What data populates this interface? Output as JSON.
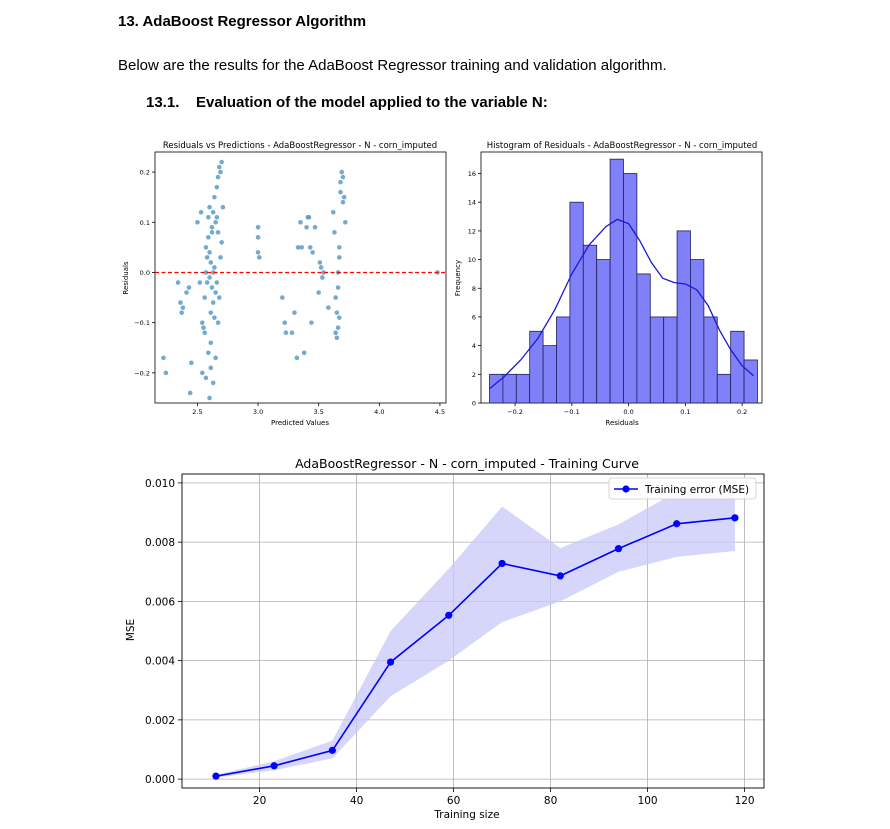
{
  "doc": {
    "heading": "13. AdaBoost Regressor Algorithm",
    "paragraph": "Below are the results for the AdaBoost Regressor training and validation algorithm.",
    "subheading": "13.1.    Evaluation of the model applied to the variable N:"
  },
  "chart_data": [
    {
      "type": "scatter",
      "title": "Residuals vs Predictions - AdaBoostRegressor - N - corn_imputed",
      "xlabel": "Predicted Values",
      "ylabel": "Residuals",
      "xlim": [
        2.15,
        4.55
      ],
      "ylim": [
        -0.26,
        0.24
      ],
      "xticks": [
        2.5,
        3.0,
        3.5,
        4.0,
        4.5
      ],
      "xtick_labels": [
        "2.5",
        "3.0",
        "3.5",
        "4.0",
        "4.5"
      ],
      "yticks": [
        -0.2,
        -0.1,
        0.0,
        0.1,
        0.2
      ],
      "ytick_labels": [
        "−0.2",
        "−0.1",
        "0.0",
        "0.1",
        "0.2"
      ],
      "reference_line": 0.0,
      "color": "#5b9bc8",
      "ref_color": "#ff0000",
      "points": [
        [
          2.22,
          -0.17
        ],
        [
          2.24,
          -0.2
        ],
        [
          2.34,
          -0.02
        ],
        [
          2.36,
          -0.06
        ],
        [
          2.37,
          -0.08
        ],
        [
          2.38,
          -0.07
        ],
        [
          2.41,
          -0.04
        ],
        [
          2.43,
          -0.03
        ],
        [
          2.44,
          -0.24
        ],
        [
          2.45,
          -0.18
        ],
        [
          2.5,
          0.1
        ],
        [
          2.52,
          -0.02
        ],
        [
          2.53,
          0.12
        ],
        [
          2.54,
          -0.1
        ],
        [
          2.55,
          -0.11
        ],
        [
          2.56,
          -0.12
        ],
        [
          2.56,
          -0.05
        ],
        [
          2.57,
          0.05
        ],
        [
          2.57,
          0.0
        ],
        [
          2.58,
          0.03
        ],
        [
          2.58,
          -0.02
        ],
        [
          2.59,
          0.11
        ],
        [
          2.59,
          0.07
        ],
        [
          2.6,
          0.13
        ],
        [
          2.6,
          0.04
        ],
        [
          2.6,
          -0.01
        ],
        [
          2.61,
          0.02
        ],
        [
          2.61,
          -0.08
        ],
        [
          2.61,
          -0.14
        ],
        [
          2.62,
          0.09
        ],
        [
          2.62,
          0.08
        ],
        [
          2.62,
          -0.03
        ],
        [
          2.63,
          0.12
        ],
        [
          2.63,
          0.0
        ],
        [
          2.63,
          -0.06
        ],
        [
          2.64,
          0.15
        ],
        [
          2.64,
          0.01
        ],
        [
          2.64,
          -0.09
        ],
        [
          2.65,
          0.1
        ],
        [
          2.65,
          -0.04
        ],
        [
          2.65,
          -0.17
        ],
        [
          2.66,
          0.17
        ],
        [
          2.66,
          0.11
        ],
        [
          2.66,
          -0.02
        ],
        [
          2.67,
          0.19
        ],
        [
          2.67,
          0.08
        ],
        [
          2.67,
          -0.1
        ],
        [
          2.68,
          0.21
        ],
        [
          2.68,
          -0.05
        ],
        [
          2.69,
          0.2
        ],
        [
          2.69,
          0.03
        ],
        [
          2.7,
          0.22
        ],
        [
          2.7,
          0.06
        ],
        [
          2.71,
          0.13
        ],
        [
          2.54,
          -0.2
        ],
        [
          2.57,
          -0.21
        ],
        [
          2.59,
          -0.16
        ],
        [
          2.6,
          -0.25
        ],
        [
          2.61,
          -0.19
        ],
        [
          2.63,
          -0.22
        ],
        [
          3.0,
          0.09
        ],
        [
          3.0,
          0.07
        ],
        [
          3.0,
          0.04
        ],
        [
          3.01,
          0.03
        ],
        [
          3.2,
          -0.05
        ],
        [
          3.22,
          -0.1
        ],
        [
          3.23,
          -0.12
        ],
        [
          3.28,
          -0.12
        ],
        [
          3.3,
          -0.08
        ],
        [
          3.32,
          -0.17
        ],
        [
          3.33,
          0.05
        ],
        [
          3.35,
          0.1
        ],
        [
          3.36,
          0.05
        ],
        [
          3.38,
          -0.16
        ],
        [
          3.4,
          0.09
        ],
        [
          3.41,
          0.11
        ],
        [
          3.42,
          0.11
        ],
        [
          3.43,
          0.05
        ],
        [
          3.44,
          -0.1
        ],
        [
          3.45,
          0.04
        ],
        [
          3.47,
          0.09
        ],
        [
          3.5,
          -0.04
        ],
        [
          3.51,
          0.02
        ],
        [
          3.52,
          0.01
        ],
        [
          3.53,
          -0.01
        ],
        [
          3.54,
          0.0
        ],
        [
          3.58,
          -0.07
        ],
        [
          3.62,
          0.12
        ],
        [
          3.63,
          0.08
        ],
        [
          3.64,
          -0.05
        ],
        [
          3.64,
          -0.12
        ],
        [
          3.65,
          -0.08
        ],
        [
          3.65,
          -0.13
        ],
        [
          3.66,
          -0.11
        ],
        [
          3.66,
          -0.03
        ],
        [
          3.67,
          0.03
        ],
        [
          3.67,
          0.05
        ],
        [
          3.68,
          0.16
        ],
        [
          3.68,
          0.18
        ],
        [
          3.69,
          0.2
        ],
        [
          3.7,
          0.14
        ],
        [
          3.7,
          0.19
        ],
        [
          3.71,
          0.15
        ],
        [
          3.72,
          0.1
        ],
        [
          3.66,
          0.0
        ],
        [
          3.67,
          -0.09
        ],
        [
          4.48,
          0.0
        ]
      ]
    },
    {
      "type": "bar",
      "title": "Histogram of Residuals - AdaBoostRegressor - N - corn_imputed",
      "xlabel": "Residuals",
      "ylabel": "Frequency",
      "bin_start": -0.245,
      "bin_width": 0.0236,
      "counts": [
        2,
        2,
        2,
        5,
        4,
        6,
        14,
        11,
        10,
        17,
        16,
        9,
        6,
        6,
        12,
        10,
        6,
        2,
        5,
        3
      ],
      "xlim": [
        -0.26,
        0.235
      ],
      "ylim": [
        0,
        17.5
      ],
      "xticks": [
        -0.2,
        -0.1,
        0.0,
        0.1,
        0.2
      ],
      "xtick_labels": [
        "−0.2",
        "−0.1",
        "0.0",
        "0.1",
        "0.2"
      ],
      "yticks": [
        0,
        2,
        4,
        6,
        8,
        10,
        12,
        14,
        16
      ],
      "ytick_labels": [
        "0",
        "2",
        "4",
        "6",
        "8",
        "10",
        "12",
        "14",
        "16"
      ],
      "bar_color": "#8080f8",
      "line_color": "#1a1ad4",
      "kde": [
        [
          -0.245,
          1.0
        ],
        [
          -0.22,
          1.8
        ],
        [
          -0.19,
          3.0
        ],
        [
          -0.16,
          4.5
        ],
        [
          -0.13,
          6.5
        ],
        [
          -0.1,
          9.0
        ],
        [
          -0.07,
          11.0
        ],
        [
          -0.04,
          12.3
        ],
        [
          -0.02,
          12.8
        ],
        [
          0.0,
          12.5
        ],
        [
          0.02,
          11.3
        ],
        [
          0.04,
          9.8
        ],
        [
          0.06,
          8.7
        ],
        [
          0.08,
          8.4
        ],
        [
          0.1,
          8.3
        ],
        [
          0.12,
          7.9
        ],
        [
          0.14,
          6.8
        ],
        [
          0.16,
          5.1
        ],
        [
          0.18,
          3.7
        ],
        [
          0.2,
          2.6
        ],
        [
          0.22,
          1.9
        ]
      ]
    },
    {
      "type": "line",
      "title": "AdaBoostRegressor - N - corn_imputed - Training Curve",
      "xlabel": "Training size",
      "ylabel": "MSE",
      "xlim": [
        4,
        124
      ],
      "ylim": [
        -0.0003,
        0.0103
      ],
      "xticks": [
        20,
        40,
        60,
        80,
        100,
        120
      ],
      "xtick_labels": [
        "20",
        "40",
        "60",
        "80",
        "100",
        "120"
      ],
      "yticks": [
        0.0,
        0.002,
        0.004,
        0.006,
        0.008,
        0.01
      ],
      "ytick_labels": [
        "0.000",
        "0.002",
        "0.004",
        "0.006",
        "0.008",
        "0.010"
      ],
      "grid": true,
      "legend_position": "top-right",
      "color": "#0000ff",
      "band_color": "#c8c8fa",
      "series": [
        {
          "name": "Training error (MSE)",
          "x": [
            11,
            23,
            35,
            47,
            59,
            70,
            82,
            94,
            106,
            118
          ],
          "y": [
            0.0001,
            0.00045,
            0.00097,
            0.00395,
            0.00553,
            0.00728,
            0.00686,
            0.00778,
            0.00862,
            0.00882
          ],
          "band_upper": [
            0.00015,
            0.0006,
            0.0013,
            0.005,
            0.0071,
            0.0092,
            0.0078,
            0.0086,
            0.0097,
            0.0098
          ],
          "band_lower": [
            5e-05,
            0.0003,
            0.0007,
            0.0028,
            0.004,
            0.0053,
            0.006,
            0.007,
            0.0075,
            0.0077
          ]
        }
      ]
    }
  ]
}
